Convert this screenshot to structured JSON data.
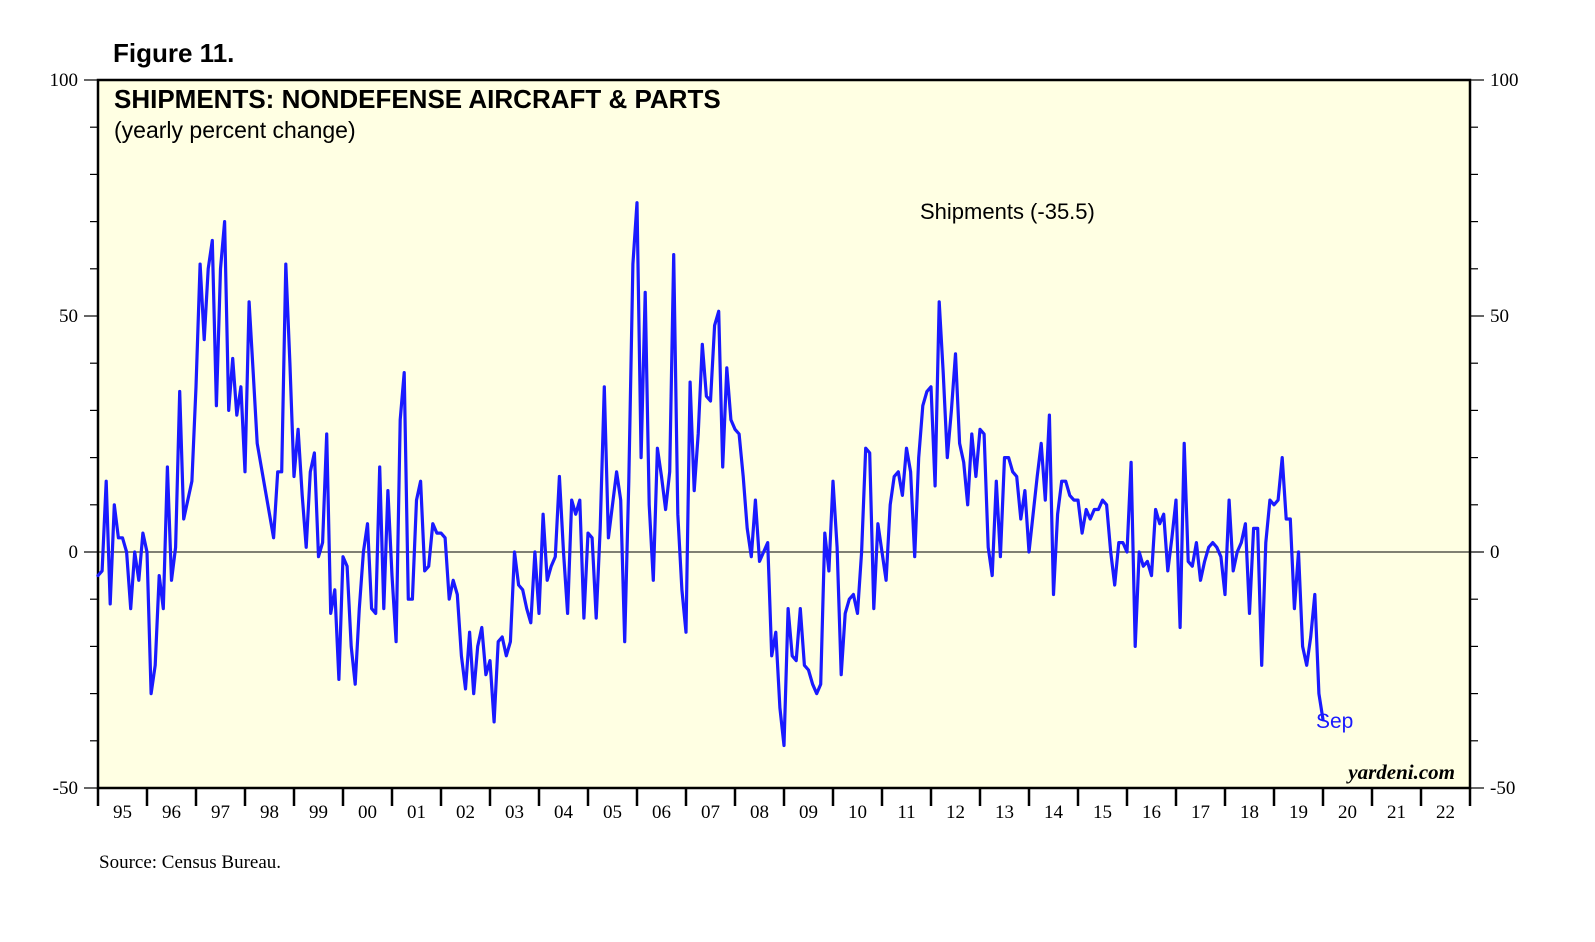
{
  "figure_label": "Figure 11.",
  "source": "Source: Census Bureau.",
  "brand": "yardeni.com",
  "colors": {
    "plot_bg": "#ffffe3",
    "series": "#1a1aff",
    "frame": "#000000"
  },
  "chart_data": {
    "type": "line",
    "title": "SHIPMENTS: NONDEFENSE AIRCRAFT & PARTS",
    "subtitle": "(yearly percent change)",
    "xlabel": "",
    "ylabel": "",
    "ylim": [
      -50,
      100
    ],
    "y_ticks": [
      "-50",
      "0",
      "50",
      "100"
    ],
    "x_range": [
      1995,
      2023
    ],
    "grid": false,
    "zero_line": true,
    "x_tick_labels": [
      "95",
      "96",
      "97",
      "98",
      "99",
      "00",
      "01",
      "02",
      "03",
      "04",
      "05",
      "06",
      "07",
      "08",
      "09",
      "10",
      "11",
      "12",
      "13",
      "14",
      "15",
      "16",
      "17",
      "18",
      "19",
      "20",
      "21",
      "22"
    ],
    "series": [
      {
        "name": "Shipments",
        "legend_label": "Shipments (-35.5)",
        "latest_label": "Sep",
        "latest_value": -35.5,
        "x_start": 1995.0,
        "x_step": 0.0833333,
        "values": [
          -5,
          -4,
          15,
          -11,
          10,
          3,
          3,
          0,
          -12,
          0,
          -6,
          4,
          0,
          -30,
          -24,
          -5,
          -12,
          18,
          -6,
          1,
          34,
          7,
          11,
          15,
          35,
          61,
          45,
          60,
          66,
          31,
          60,
          70,
          30,
          41,
          29,
          35,
          17,
          53,
          38,
          23,
          18,
          13,
          8,
          3,
          17,
          17,
          61,
          40,
          16,
          26,
          12,
          1,
          17,
          21,
          -1,
          2,
          25,
          -13,
          -8,
          -27,
          -1,
          -3,
          -20,
          -28,
          -12,
          0,
          6,
          -12,
          -13,
          18,
          -12,
          13,
          -5,
          -19,
          28,
          38,
          -10,
          -10,
          11,
          15,
          -4,
          -3,
          6,
          4,
          4,
          3,
          -10,
          -6,
          -9,
          -22,
          -29,
          -17,
          -30,
          -20,
          -16,
          -26,
          -23,
          -36,
          -19,
          -18,
          -22,
          -19,
          0,
          -7,
          -8,
          -12,
          -15,
          0,
          -13,
          8,
          -6,
          -3,
          -1,
          16,
          0,
          -13,
          11,
          8,
          11,
          -14,
          4,
          3,
          -14,
          5,
          35,
          3,
          10,
          17,
          11,
          -19,
          15,
          61,
          74,
          20,
          55,
          10,
          -6,
          22,
          16,
          9,
          17,
          63,
          8,
          -8,
          -17,
          36,
          13,
          25,
          44,
          33,
          32,
          48,
          51,
          18,
          39,
          28,
          26,
          25,
          16,
          5,
          -1,
          11,
          -2,
          0,
          2,
          -22,
          -17,
          -33,
          -41,
          -12,
          -22,
          -23,
          -12,
          -24,
          -25,
          -28,
          -30,
          -28,
          4,
          -4,
          15,
          1,
          -26,
          -13,
          -10,
          -9,
          -13,
          0,
          22,
          21,
          -12,
          6,
          0,
          -6,
          10,
          16,
          17,
          12,
          22,
          17,
          -1,
          20,
          31,
          34,
          35,
          14,
          53,
          38,
          20,
          30,
          42,
          23,
          19,
          10,
          25,
          16,
          26,
          25,
          1,
          -5,
          15,
          -1,
          20,
          20,
          17,
          16,
          7,
          13,
          0,
          8,
          16,
          23,
          11,
          29,
          -9,
          8,
          15,
          15,
          12,
          11,
          11,
          4,
          9,
          7,
          9,
          9,
          11,
          10,
          0,
          -7,
          2,
          2,
          0,
          19,
          -20,
          0,
          -3,
          -2,
          -5,
          9,
          6,
          8,
          -4,
          3,
          11,
          -16,
          23,
          -2,
          -3,
          2,
          -6,
          -2,
          1,
          2,
          1,
          -1,
          -9,
          11,
          -4,
          0,
          2,
          6,
          -13,
          5,
          5,
          -24,
          2,
          11,
          10,
          11,
          20,
          7,
          7,
          -12,
          0,
          -20,
          -24,
          -18,
          -9,
          -30,
          -35.5
        ]
      }
    ]
  }
}
